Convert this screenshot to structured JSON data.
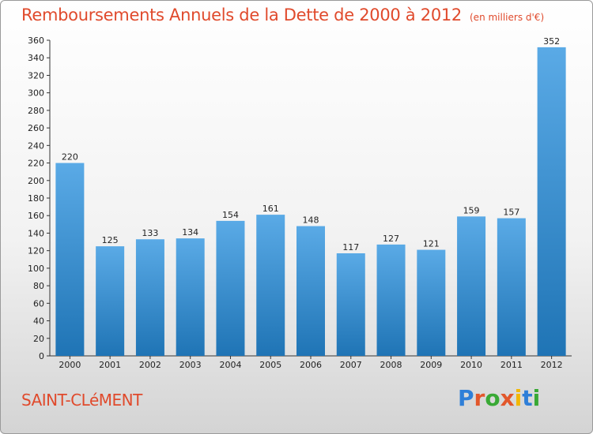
{
  "title": "Remboursements Annuels de la Dette de 2000 à 2012",
  "subtitle": "(en milliers d'€)",
  "town": "SAINT-CLéMENT",
  "logo": {
    "text": "Proxiti",
    "letter_colors": [
      "#2f7fd8",
      "#e2572b",
      "#39a935",
      "#e2572b",
      "#f2b705",
      "#2f7fd8",
      "#39a935"
    ]
  },
  "colors": {
    "bar_light": "#5aaae6",
    "bar_dark": "#1f74b5",
    "accent": "#e04a2c"
  },
  "chart_data": {
    "type": "bar",
    "title": "Remboursements Annuels de la Dette de 2000 à 2012",
    "subtitle": "(en milliers d'€)",
    "categories": [
      "2000",
      "2001",
      "2002",
      "2003",
      "2004",
      "2005",
      "2006",
      "2007",
      "2008",
      "2009",
      "2010",
      "2011",
      "2012"
    ],
    "values": [
      220,
      125,
      133,
      134,
      154,
      161,
      148,
      117,
      127,
      121,
      159,
      157,
      352
    ],
    "ylim": [
      0,
      360
    ],
    "ytick_step": 20,
    "grid": false,
    "data_labels": true
  }
}
